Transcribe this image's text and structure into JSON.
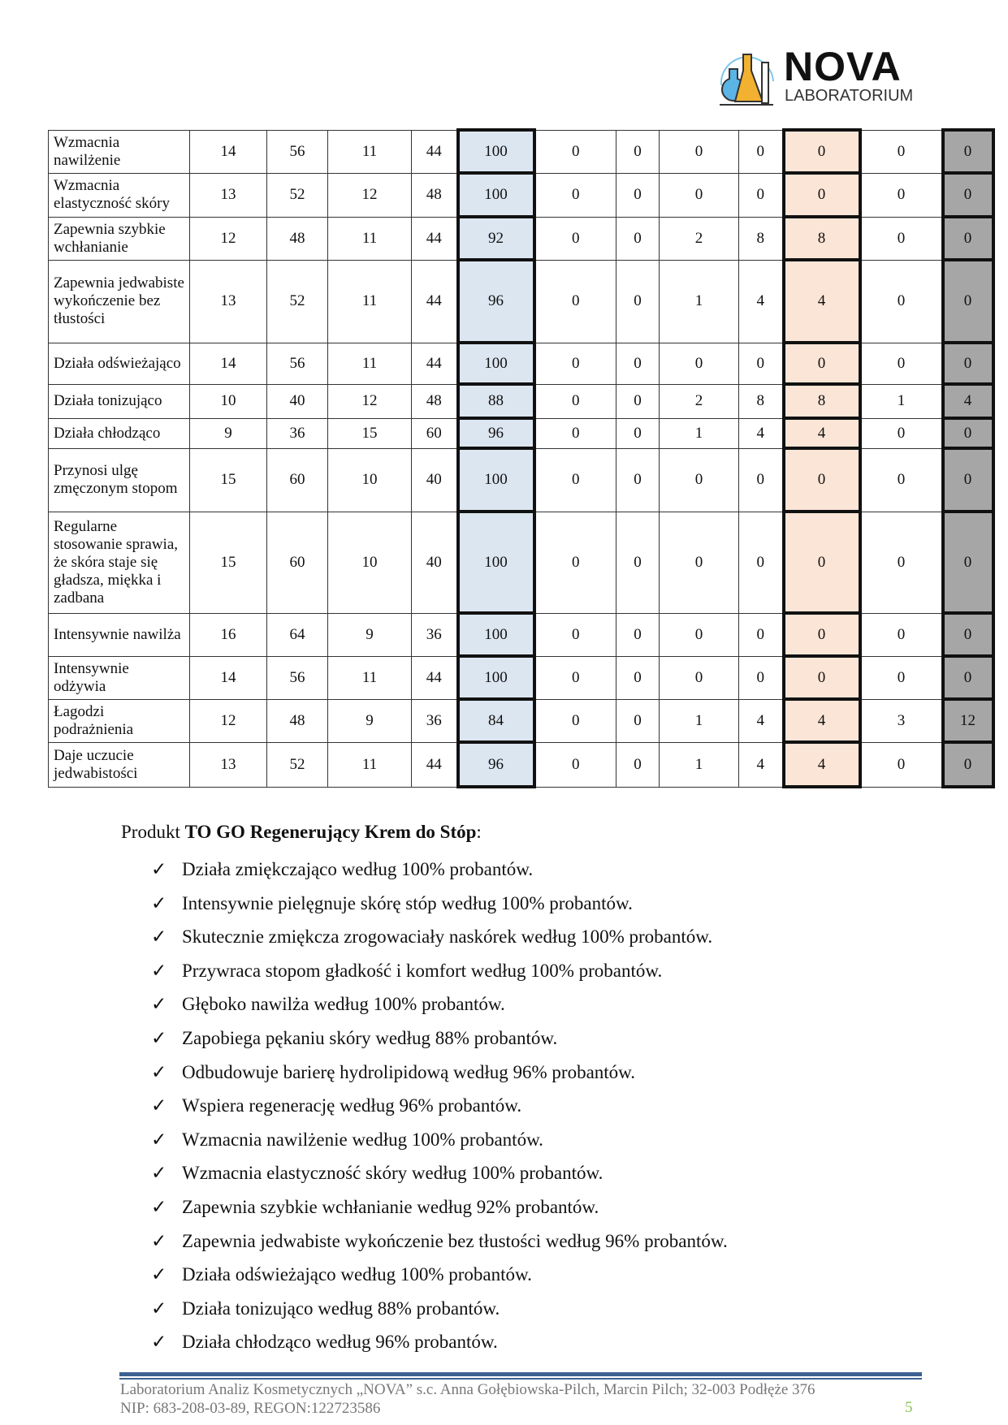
{
  "logo": {
    "name": "NOVA",
    "subtitle": "LABORATORIUM"
  },
  "table": {
    "rows": [
      {
        "label": "Wzmacnia nawilżenie",
        "values": [
          "14",
          "56",
          "11",
          "44",
          "100",
          "0",
          "0",
          "0",
          "0",
          "0",
          "0",
          "0"
        ]
      },
      {
        "label": "Wzmacnia elastyczność skóry",
        "values": [
          "13",
          "52",
          "12",
          "48",
          "100",
          "0",
          "0",
          "0",
          "0",
          "0",
          "0",
          "0"
        ]
      },
      {
        "label": "Zapewnia szybkie wchłanianie",
        "values": [
          "12",
          "48",
          "11",
          "44",
          "92",
          "0",
          "0",
          "2",
          "8",
          "8",
          "0",
          "0"
        ]
      },
      {
        "label": "Zapewnia jedwabiste wykończenie bez tłustości",
        "values": [
          "13",
          "52",
          "11",
          "44",
          "96",
          "0",
          "0",
          "1",
          "4",
          "4",
          "0",
          "0"
        ]
      },
      {
        "label": "Działa odświeżająco",
        "values": [
          "14",
          "56",
          "11",
          "44",
          "100",
          "0",
          "0",
          "0",
          "0",
          "0",
          "0",
          "0"
        ]
      },
      {
        "label": "Działa tonizująco",
        "values": [
          "10",
          "40",
          "12",
          "48",
          "88",
          "0",
          "0",
          "2",
          "8",
          "8",
          "1",
          "4"
        ]
      },
      {
        "label": "Działa chłodząco",
        "values": [
          "9",
          "36",
          "15",
          "60",
          "96",
          "0",
          "0",
          "1",
          "4",
          "4",
          "0",
          "0"
        ]
      },
      {
        "label": "Przynosi ulgę zmęczonym stopom",
        "values": [
          "15",
          "60",
          "10",
          "40",
          "100",
          "0",
          "0",
          "0",
          "0",
          "0",
          "0",
          "0"
        ]
      },
      {
        "label": "Regularne stosowanie sprawia, że skóra staje się gładsza, miękka i zadbana",
        "values": [
          "15",
          "60",
          "10",
          "40",
          "100",
          "0",
          "0",
          "0",
          "0",
          "0",
          "0",
          "0"
        ]
      },
      {
        "label": "Intensywnie nawilża",
        "values": [
          "16",
          "64",
          "9",
          "36",
          "100",
          "0",
          "0",
          "0",
          "0",
          "0",
          "0",
          "0"
        ]
      },
      {
        "label": "Intensywnie odżywia",
        "values": [
          "14",
          "56",
          "11",
          "44",
          "100",
          "0",
          "0",
          "0",
          "0",
          "0",
          "0",
          "0"
        ]
      },
      {
        "label": "Łagodzi podrażnienia",
        "values": [
          "12",
          "48",
          "9",
          "36",
          "84",
          "0",
          "0",
          "1",
          "4",
          "4",
          "3",
          "12"
        ]
      },
      {
        "label": "Daje uczucie jedwabistości",
        "values": [
          "13",
          "52",
          "11",
          "44",
          "96",
          "0",
          "0",
          "1",
          "4",
          "4",
          "0",
          "0"
        ]
      }
    ],
    "highlight_colors": {
      "agree_total": "#dce6f1",
      "disagree_total": "#fbe5d6",
      "neutral_percent": "#a6a6a6"
    }
  },
  "summary": {
    "prefix": "Produkt ",
    "product": "TO GO Regenerujący Krem do Stóp",
    "suffix": ":",
    "check_icon": "✓",
    "items": [
      "Działa zmiękczająco według 100% probantów.",
      "Intensywnie pielęgnuje skórę stóp według 100% probantów.",
      "Skutecznie zmiękcza zrogowaciały naskórek według 100% probantów.",
      "Przywraca stopom gładkość i komfort według 100% probantów.",
      "Głęboko nawilża według 100% probantów.",
      "Zapobiega pękaniu skóry według 88% probantów.",
      "Odbudowuje barierę hydrolipidową według 96% probantów.",
      "Wspiera regenerację według 96% probantów.",
      "Wzmacnia nawilżenie według 100% probantów.",
      "Wzmacnia elastyczność skóry według 100% probantów.",
      "Zapewnia szybkie wchłanianie według 92% probantów.",
      "Zapewnia jedwabiste wykończenie bez tłustości według 96% probantów.",
      "Działa odświeżająco według 100% probantów.",
      "Działa tonizująco według 88% probantów.",
      "Działa chłodząco według 96% probantów."
    ]
  },
  "footer": {
    "line1": "Laboratorium Analiz Kosmetycznych „NOVA” s.c. Anna Gołębiowska-Pilch, Marcin Pilch; 32-003 Podłęże 376",
    "line2": "NIP: 683-208-03-89, REGON:122723586",
    "page": "5"
  }
}
